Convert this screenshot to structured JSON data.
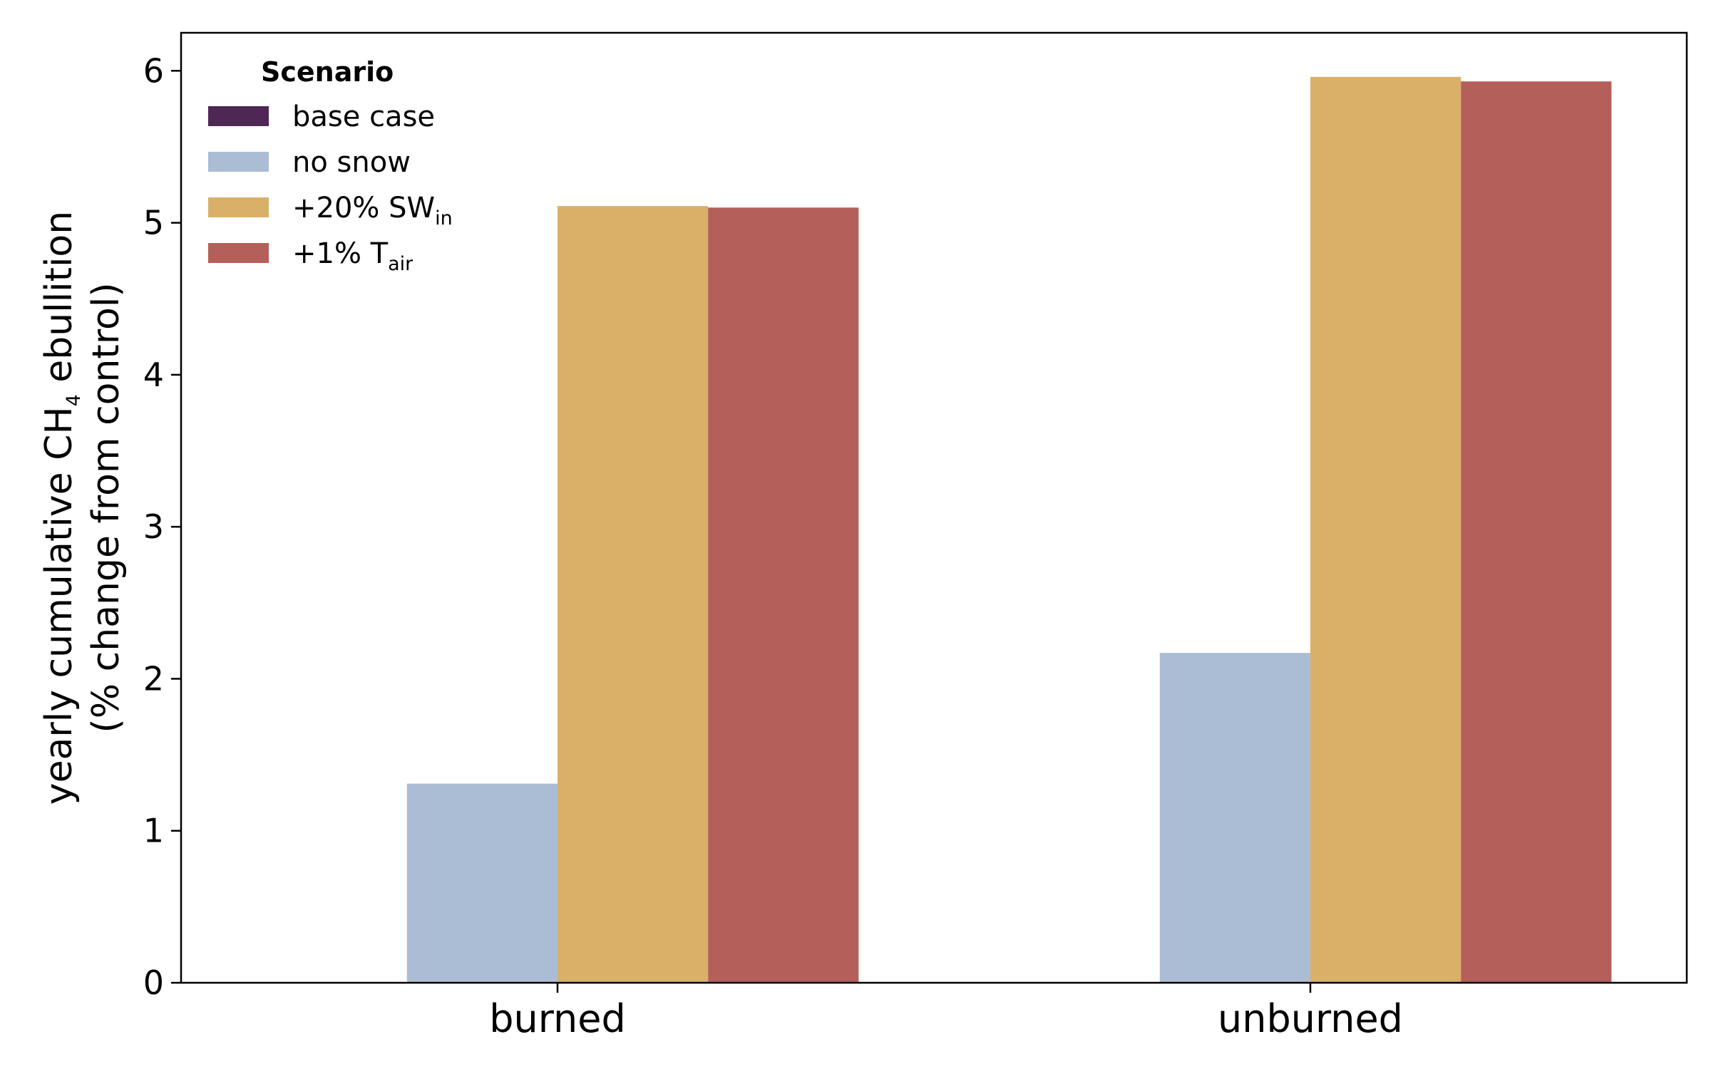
{
  "chart_data": {
    "type": "bar",
    "categories": [
      "burned",
      "unburned"
    ],
    "series": [
      {
        "name": "base case",
        "color": "#4f2754",
        "values": [
          0,
          0
        ]
      },
      {
        "name": "no snow",
        "color": "#abbdd4",
        "values": [
          1.31,
          2.17
        ]
      },
      {
        "name": "+20% SWin",
        "color": "#dab068",
        "values": [
          5.11,
          5.96
        ]
      },
      {
        "name": "+1% Tair",
        "color": "#b55f5a",
        "values": [
          5.1,
          5.93
        ]
      }
    ],
    "ylim": [
      0,
      6.25
    ],
    "yticks": [
      0,
      1,
      2,
      3,
      4,
      5,
      6
    ],
    "ylabel": {
      "line1_pre": "yearly cumulative CH",
      "line1_sub": "4",
      "line1_post": " ebullition",
      "line2": "(% change from control)"
    },
    "xlabel": "",
    "legend": {
      "title": "Scenario",
      "placement": "top-left",
      "entries": [
        {
          "text": "base case",
          "sub": ""
        },
        {
          "text": "no snow",
          "sub": ""
        },
        {
          "text": "+20% SW",
          "sub": "in"
        },
        {
          "text": "+1% T",
          "sub": "air"
        }
      ]
    },
    "grid": false
  }
}
